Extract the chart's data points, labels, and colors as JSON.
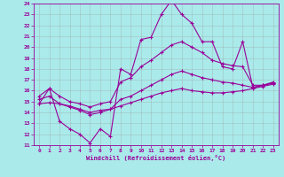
{
  "xlabel": "Windchill (Refroidissement éolien,°C)",
  "bg_color": "#aaeaea",
  "line_color": "#990099",
  "grid_color": "#999999",
  "xlim": [
    -0.5,
    23.5
  ],
  "ylim": [
    11,
    24
  ],
  "xticks": [
    0,
    1,
    2,
    3,
    4,
    5,
    6,
    7,
    8,
    9,
    10,
    11,
    12,
    13,
    14,
    15,
    16,
    17,
    18,
    19,
    20,
    21,
    22,
    23
  ],
  "yticks": [
    11,
    12,
    13,
    14,
    15,
    16,
    17,
    18,
    19,
    20,
    21,
    22,
    23,
    24
  ],
  "line1_x": [
    0,
    1,
    2,
    3,
    4,
    5,
    6,
    7,
    8,
    9,
    10,
    11,
    12,
    13,
    14,
    15,
    16,
    17,
    18,
    19,
    20,
    21,
    22,
    23
  ],
  "line1_y": [
    14.8,
    16.2,
    13.2,
    12.5,
    12.0,
    11.2,
    12.5,
    11.8,
    18.0,
    17.5,
    20.7,
    20.9,
    23.0,
    24.3,
    23.0,
    22.2,
    20.5,
    20.5,
    18.2,
    18.0,
    20.5,
    16.3,
    16.5,
    16.7
  ],
  "line2_x": [
    0,
    1,
    2,
    3,
    4,
    5,
    6,
    7,
    8,
    9,
    10,
    11,
    12,
    13,
    14,
    15,
    16,
    17,
    18,
    19,
    20,
    21,
    22,
    23
  ],
  "line2_y": [
    15.5,
    16.2,
    15.5,
    15.0,
    14.8,
    14.5,
    14.8,
    15.0,
    16.8,
    17.2,
    18.2,
    18.8,
    19.5,
    20.2,
    20.5,
    20.0,
    19.5,
    18.8,
    18.5,
    18.3,
    18.2,
    16.5,
    16.5,
    16.8
  ],
  "line3_x": [
    0,
    1,
    2,
    3,
    4,
    5,
    6,
    7,
    8,
    9,
    10,
    11,
    12,
    13,
    14,
    15,
    16,
    17,
    18,
    19,
    20,
    21,
    22,
    23
  ],
  "line3_y": [
    15.2,
    15.5,
    14.8,
    14.5,
    14.2,
    13.8,
    14.0,
    14.3,
    15.2,
    15.5,
    16.0,
    16.5,
    17.0,
    17.5,
    17.8,
    17.5,
    17.2,
    17.0,
    16.8,
    16.7,
    16.5,
    16.3,
    16.5,
    16.7
  ],
  "line4_x": [
    0,
    1,
    2,
    3,
    4,
    5,
    6,
    7,
    8,
    9,
    10,
    11,
    12,
    13,
    14,
    15,
    16,
    17,
    18,
    19,
    20,
    21,
    22,
    23
  ],
  "line4_y": [
    14.8,
    14.9,
    14.8,
    14.6,
    14.3,
    14.0,
    14.2,
    14.3,
    14.6,
    14.9,
    15.2,
    15.5,
    15.8,
    16.0,
    16.2,
    16.0,
    15.9,
    15.8,
    15.8,
    15.9,
    16.0,
    16.2,
    16.4,
    16.6
  ]
}
